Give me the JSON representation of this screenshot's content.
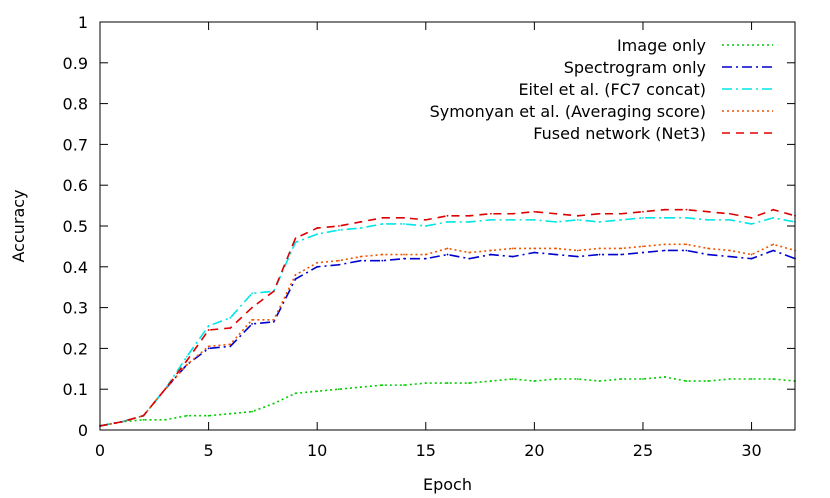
{
  "chart_data": {
    "type": "line",
    "xlabel": "Epoch",
    "ylabel": "Accuracy",
    "xlim": [
      0,
      32
    ],
    "ylim": [
      0,
      1
    ],
    "x_ticks": [
      "0",
      "5",
      "10",
      "15",
      "20",
      "25",
      "30"
    ],
    "y_ticks": [
      "0",
      "0.1",
      "0.2",
      "0.3",
      "0.4",
      "0.5",
      "0.6",
      "0.7",
      "0.8",
      "0.9",
      "1"
    ],
    "legend_position": "top-right",
    "grid": false,
    "x": [
      0,
      1,
      2,
      3,
      4,
      5,
      6,
      7,
      8,
      9,
      10,
      11,
      12,
      13,
      14,
      15,
      16,
      17,
      18,
      19,
      20,
      21,
      22,
      23,
      24,
      25,
      26,
      27,
      28,
      29,
      30,
      31,
      32
    ],
    "series": [
      {
        "name": "Image only",
        "color": "#00cc00",
        "dash": "dot",
        "values": [
          0.01,
          0.02,
          0.025,
          0.025,
          0.035,
          0.035,
          0.04,
          0.045,
          0.065,
          0.09,
          0.095,
          0.1,
          0.105,
          0.11,
          0.11,
          0.115,
          0.115,
          0.115,
          0.12,
          0.125,
          0.12,
          0.125,
          0.125,
          0.12,
          0.125,
          0.125,
          0.13,
          0.12,
          0.12,
          0.125,
          0.125,
          0.125,
          0.12
        ]
      },
      {
        "name": "Spectrogram only",
        "color": "#0000cc",
        "dash": "dashdot",
        "values": [
          0.01,
          0.02,
          0.035,
          0.1,
          0.16,
          0.2,
          0.205,
          0.26,
          0.265,
          0.37,
          0.4,
          0.405,
          0.415,
          0.415,
          0.42,
          0.42,
          0.43,
          0.42,
          0.43,
          0.425,
          0.435,
          0.43,
          0.425,
          0.43,
          0.43,
          0.435,
          0.44,
          0.44,
          0.43,
          0.425,
          0.42,
          0.44,
          0.42
        ]
      },
      {
        "name": "Eitel et al. (FC7 concat)",
        "color": "#00e5e5",
        "dash": "dashdot",
        "values": [
          0.01,
          0.02,
          0.035,
          0.1,
          0.18,
          0.255,
          0.275,
          0.335,
          0.34,
          0.46,
          0.48,
          0.49,
          0.495,
          0.505,
          0.505,
          0.5,
          0.51,
          0.51,
          0.515,
          0.515,
          0.515,
          0.51,
          0.515,
          0.51,
          0.515,
          0.52,
          0.52,
          0.52,
          0.515,
          0.515,
          0.505,
          0.52,
          0.51
        ]
      },
      {
        "name": "Symonyan et al. (Averaging score)",
        "color": "#ee5500",
        "dash": "dot",
        "values": [
          0.01,
          0.02,
          0.035,
          0.1,
          0.16,
          0.205,
          0.21,
          0.27,
          0.27,
          0.38,
          0.41,
          0.415,
          0.425,
          0.43,
          0.43,
          0.43,
          0.445,
          0.435,
          0.44,
          0.445,
          0.445,
          0.445,
          0.44,
          0.445,
          0.445,
          0.45,
          0.455,
          0.455,
          0.445,
          0.44,
          0.43,
          0.455,
          0.44
        ]
      },
      {
        "name": "Fused network (Net3)",
        "color": "#dd0000",
        "dash": "dash",
        "values": [
          0.01,
          0.02,
          0.035,
          0.1,
          0.17,
          0.245,
          0.25,
          0.3,
          0.34,
          0.47,
          0.495,
          0.5,
          0.51,
          0.52,
          0.52,
          0.515,
          0.525,
          0.525,
          0.53,
          0.53,
          0.535,
          0.53,
          0.525,
          0.53,
          0.53,
          0.535,
          0.54,
          0.54,
          0.535,
          0.53,
          0.52,
          0.54,
          0.525
        ]
      }
    ]
  }
}
